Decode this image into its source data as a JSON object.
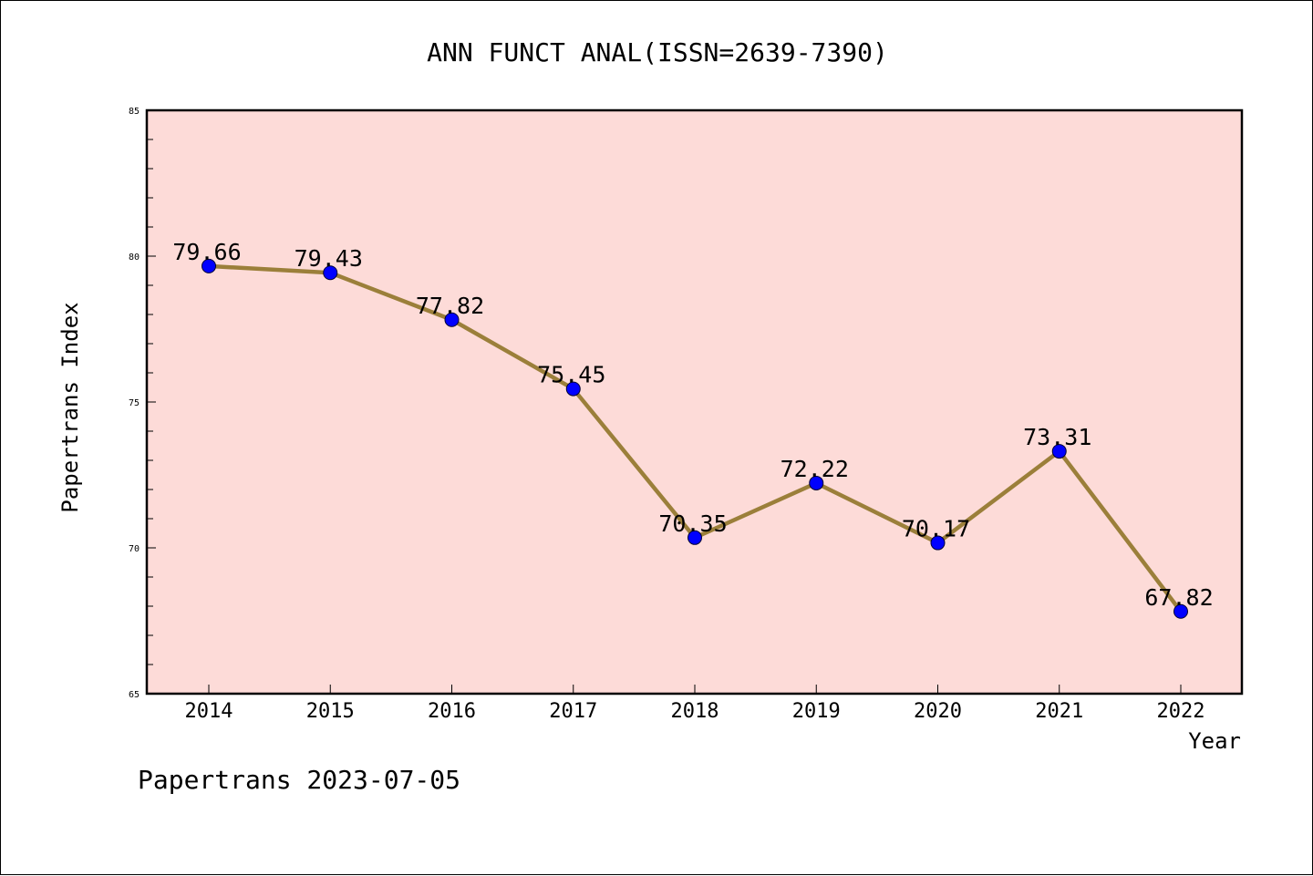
{
  "chart_data": {
    "type": "line",
    "title": "ANN FUNCT ANAL(ISSN=2639-7390)",
    "xlabel": "Year",
    "ylabel": "Papertrans Index",
    "categories": [
      "2014",
      "2015",
      "2016",
      "2017",
      "2018",
      "2019",
      "2020",
      "2021",
      "2022"
    ],
    "values": [
      79.66,
      79.43,
      77.82,
      75.45,
      70.35,
      72.22,
      70.17,
      73.31,
      67.82
    ],
    "data_labels": [
      "79.66",
      "79.43",
      "77.82",
      "75.45",
      "70.35",
      "72.22",
      "70.17",
      "73.31",
      "67.82"
    ],
    "ylim": [
      65,
      85
    ],
    "yticks": [
      65,
      70,
      75,
      80,
      85
    ],
    "ytick_labels": [
      "65",
      "70",
      "75",
      "80",
      "85"
    ],
    "grid": false,
    "line_color": "#9b7f3a",
    "marker_color": "#0000ff",
    "plot_background": "#fddbd8"
  },
  "footer": "Papertrans 2023-07-05"
}
